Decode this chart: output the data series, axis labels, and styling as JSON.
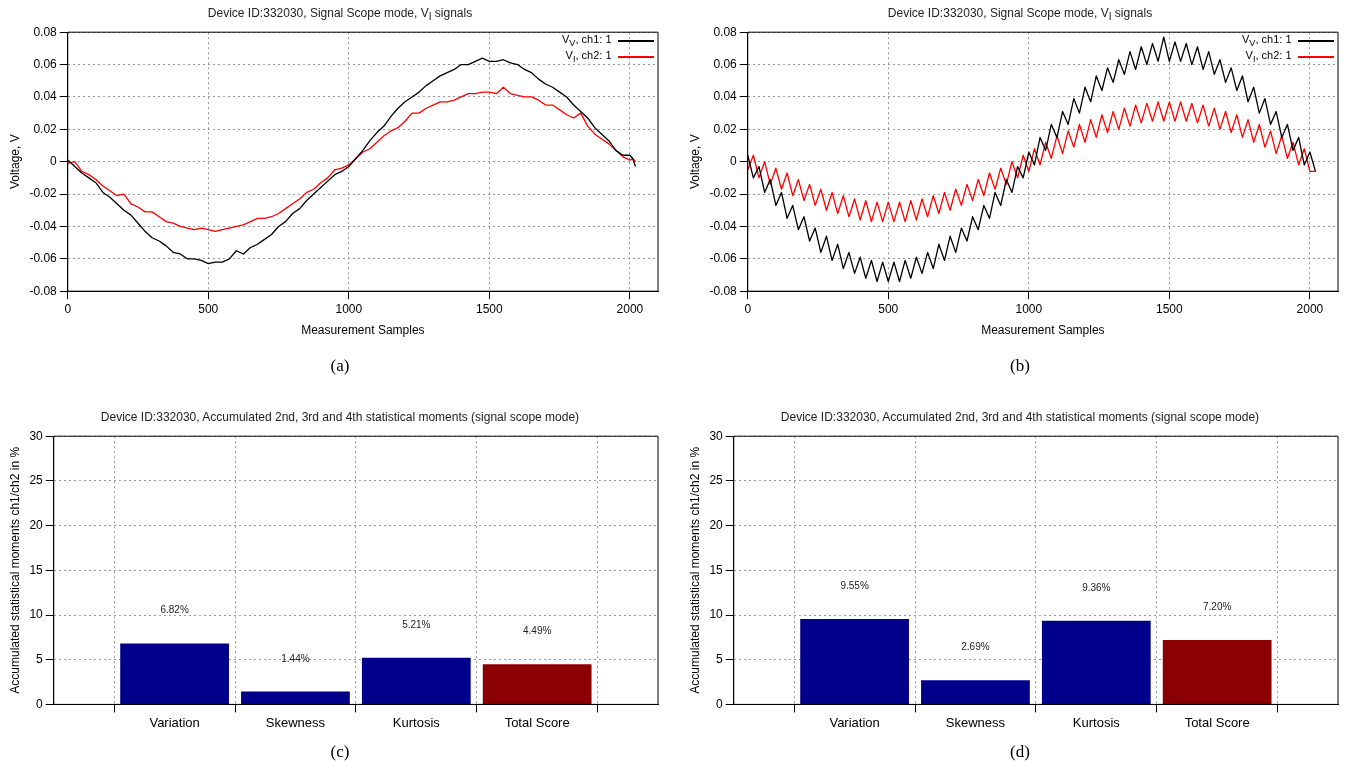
{
  "chart_data": [
    {
      "type": "line",
      "title": "Device ID:332030, Signal Scope mode, V$_{I}$ signals",
      "xlabel": "Measurement Samples",
      "ylabel": "Voltage, V",
      "annotations": [
        "(a)"
      ],
      "x": [
        0,
        25,
        50,
        75,
        100,
        125,
        150,
        175,
        200,
        225,
        250,
        275,
        300,
        325,
        350,
        375,
        400,
        425,
        450,
        475,
        500,
        525,
        550,
        575,
        600,
        625,
        650,
        675,
        700,
        725,
        750,
        775,
        800,
        825,
        850,
        875,
        900,
        925,
        950,
        975,
        1000,
        1025,
        1050,
        1075,
        1100,
        1125,
        1150,
        1175,
        1200,
        1225,
        1250,
        1275,
        1300,
        1325,
        1350,
        1375,
        1400,
        1425,
        1450,
        1475,
        1500,
        1525,
        1550,
        1575,
        1600,
        1625,
        1650,
        1675,
        1700,
        1725,
        1750,
        1775,
        1800,
        1825,
        1850,
        1875,
        1900,
        1925,
        1950,
        1975,
        2000,
        2010,
        2020
      ],
      "series": [
        {
          "name": "V$_{V}$, ch1: 1",
          "color": "#000000",
          "values": [
            0.001,
            -0.003,
            -0.007,
            -0.01,
            -0.013,
            -0.019,
            -0.022,
            -0.026,
            -0.03,
            -0.033,
            -0.038,
            -0.043,
            -0.047,
            -0.049,
            -0.052,
            -0.056,
            -0.057,
            -0.06,
            -0.06,
            -0.061,
            -0.063,
            -0.062,
            -0.062,
            -0.06,
            -0.055,
            -0.057,
            -0.053,
            -0.051,
            -0.048,
            -0.045,
            -0.04,
            -0.037,
            -0.032,
            -0.029,
            -0.024,
            -0.02,
            -0.016,
            -0.012,
            -0.008,
            -0.006,
            -0.003,
            0.002,
            0.007,
            0.013,
            0.018,
            0.022,
            0.028,
            0.033,
            0.037,
            0.04,
            0.043,
            0.047,
            0.05,
            0.053,
            0.055,
            0.057,
            0.06,
            0.06,
            0.062,
            0.064,
            0.062,
            0.062,
            0.063,
            0.061,
            0.06,
            0.057,
            0.055,
            0.051,
            0.048,
            0.046,
            0.043,
            0.04,
            0.035,
            0.031,
            0.027,
            0.021,
            0.017,
            0.013,
            0.007,
            0.004,
            0.004,
            0.002,
            -0.003
          ]
        },
        {
          "name": "V$_{I}$, ch2: 1",
          "color": "#ff0000",
          "values": [
            -0.001,
            0.0,
            -0.006,
            -0.008,
            -0.011,
            -0.015,
            -0.018,
            -0.021,
            -0.02,
            -0.026,
            -0.028,
            -0.031,
            -0.031,
            -0.034,
            -0.037,
            -0.038,
            -0.04,
            -0.041,
            -0.042,
            -0.041,
            -0.042,
            -0.043,
            -0.042,
            -0.041,
            -0.04,
            -0.039,
            -0.037,
            -0.035,
            -0.035,
            -0.034,
            -0.032,
            -0.029,
            -0.026,
            -0.023,
            -0.019,
            -0.017,
            -0.013,
            -0.01,
            -0.005,
            -0.004,
            -0.002,
            0.002,
            0.006,
            0.008,
            0.012,
            0.016,
            0.019,
            0.021,
            0.025,
            0.03,
            0.03,
            0.033,
            0.035,
            0.037,
            0.037,
            0.038,
            0.04,
            0.042,
            0.042,
            0.043,
            0.043,
            0.042,
            0.046,
            0.042,
            0.041,
            0.04,
            0.04,
            0.038,
            0.035,
            0.035,
            0.032,
            0.029,
            0.027,
            0.03,
            0.022,
            0.017,
            0.014,
            0.011,
            0.007,
            0.003,
            0.001,
            0.002,
            0.0
          ]
        }
      ],
      "xlim": [
        0,
        2100
      ],
      "xticks": [
        0,
        500,
        1000,
        1500,
        2000
      ],
      "ylim": [
        -0.08,
        0.08
      ],
      "yticks": [
        -0.08,
        -0.06,
        -0.04,
        -0.02,
        0,
        0.02,
        0.04,
        0.06,
        0.08
      ],
      "grid": true,
      "legend": "top right",
      "marker": "none"
    },
    {
      "type": "line",
      "title": "Device ID:332030, Signal Scope mode, V$_{I}$ signals",
      "xlabel": "Measurement Samples",
      "ylabel": "Voltage, V",
      "annotations": [
        "(b)"
      ],
      "x": [
        0,
        20,
        40,
        60,
        80,
        100,
        120,
        140,
        160,
        180,
        200,
        220,
        240,
        260,
        280,
        300,
        320,
        340,
        360,
        380,
        400,
        420,
        440,
        460,
        480,
        500,
        520,
        540,
        560,
        580,
        600,
        620,
        640,
        660,
        680,
        700,
        720,
        740,
        760,
        780,
        800,
        820,
        840,
        860,
        880,
        900,
        920,
        940,
        960,
        980,
        1000,
        1020,
        1040,
        1060,
        1080,
        1100,
        1120,
        1140,
        1160,
        1180,
        1200,
        1220,
        1240,
        1260,
        1280,
        1300,
        1320,
        1340,
        1360,
        1380,
        1400,
        1420,
        1440,
        1460,
        1480,
        1500,
        1520,
        1540,
        1560,
        1580,
        1600,
        1620,
        1640,
        1660,
        1680,
        1700,
        1720,
        1740,
        1760,
        1780,
        1800,
        1820,
        1840,
        1860,
        1880,
        1900,
        1920,
        1940,
        1960,
        1980,
        2000,
        2020
      ],
      "series": [
        {
          "name": "V$_{V}$, ch1: 1",
          "color": "#000000",
          "values": [
            0.004,
            -0.01,
            -0.003,
            -0.019,
            -0.011,
            -0.027,
            -0.019,
            -0.035,
            -0.027,
            -0.042,
            -0.034,
            -0.049,
            -0.041,
            -0.056,
            -0.046,
            -0.061,
            -0.051,
            -0.066,
            -0.056,
            -0.069,
            -0.059,
            -0.072,
            -0.061,
            -0.074,
            -0.062,
            -0.074,
            -0.062,
            -0.074,
            -0.061,
            -0.072,
            -0.059,
            -0.069,
            -0.056,
            -0.066,
            -0.051,
            -0.061,
            -0.046,
            -0.056,
            -0.041,
            -0.049,
            -0.034,
            -0.042,
            -0.027,
            -0.035,
            -0.019,
            -0.027,
            -0.011,
            -0.019,
            -0.003,
            -0.01,
            0.006,
            -0.002,
            0.015,
            0.007,
            0.023,
            0.015,
            0.031,
            0.023,
            0.039,
            0.03,
            0.046,
            0.037,
            0.053,
            0.044,
            0.058,
            0.049,
            0.063,
            0.054,
            0.068,
            0.057,
            0.071,
            0.06,
            0.073,
            0.062,
            0.077,
            0.062,
            0.074,
            0.062,
            0.073,
            0.06,
            0.071,
            0.057,
            0.068,
            0.054,
            0.063,
            0.049,
            0.058,
            0.044,
            0.053,
            0.037,
            0.046,
            0.03,
            0.039,
            0.023,
            0.031,
            0.015,
            0.023,
            0.007,
            0.015,
            -0.002,
            0.006,
            -0.006
          ]
        },
        {
          "name": "V$_{I}$, ch2: 1",
          "color": "#ff0000",
          "values": [
            -0.005,
            0.004,
            -0.01,
            0.0,
            -0.014,
            -0.004,
            -0.017,
            -0.007,
            -0.021,
            -0.011,
            -0.024,
            -0.014,
            -0.027,
            -0.017,
            -0.03,
            -0.019,
            -0.032,
            -0.021,
            -0.034,
            -0.023,
            -0.036,
            -0.024,
            -0.037,
            -0.025,
            -0.037,
            -0.025,
            -0.037,
            -0.025,
            -0.037,
            -0.024,
            -0.036,
            -0.023,
            -0.034,
            -0.021,
            -0.032,
            -0.019,
            -0.03,
            -0.017,
            -0.027,
            -0.014,
            -0.024,
            -0.011,
            -0.021,
            -0.007,
            -0.017,
            -0.004,
            -0.014,
            0.0,
            -0.01,
            0.004,
            -0.006,
            0.008,
            -0.002,
            0.012,
            0.002,
            0.016,
            0.005,
            0.019,
            0.009,
            0.023,
            0.012,
            0.026,
            0.015,
            0.029,
            0.018,
            0.031,
            0.02,
            0.033,
            0.022,
            0.035,
            0.024,
            0.036,
            0.025,
            0.037,
            0.025,
            0.037,
            0.025,
            0.037,
            0.025,
            0.036,
            0.024,
            0.035,
            0.022,
            0.033,
            0.02,
            0.031,
            0.018,
            0.029,
            0.015,
            0.026,
            0.012,
            0.023,
            0.009,
            0.019,
            0.005,
            0.016,
            0.002,
            0.012,
            -0.002,
            0.008,
            -0.006,
            -0.006
          ]
        }
      ],
      "xlim": [
        0,
        2100
      ],
      "xticks": [
        0,
        500,
        1000,
        1500,
        2000
      ],
      "ylim": [
        -0.08,
        0.08
      ],
      "yticks": [
        -0.08,
        -0.06,
        -0.04,
        -0.02,
        0,
        0.02,
        0.04,
        0.06,
        0.08
      ],
      "grid": true,
      "legend": "top right",
      "marker": "none"
    },
    {
      "type": "bar",
      "title": "Device ID:332030, Accumulated 2nd, 3rd and 4th statistical moments (signal scope mode)",
      "ylabel": "Accumulated statistical moments ch1/ch2 in %",
      "annotations": [
        "(c)"
      ],
      "categories": [
        "Variation",
        "Skewness",
        "Kurtosis",
        "Total Score"
      ],
      "values": [
        6.82,
        1.44,
        5.21,
        4.49
      ],
      "value_labels": [
        "6.82%",
        "1.44%",
        "5.21%",
        "4.49%"
      ],
      "colors": [
        "#00008b",
        "#00008b",
        "#00008b",
        "#8b0000"
      ],
      "ylim": [
        0,
        30
      ],
      "yticks": [
        0,
        5,
        10,
        15,
        20,
        25,
        30
      ],
      "grid": true
    },
    {
      "type": "bar",
      "title": "Device ID:332030, Accumulated 2nd, 3rd and 4th statistical moments (signal scope mode)",
      "ylabel": "Accumulated statistical moments ch1/ch2 in %",
      "annotations": [
        "(d)"
      ],
      "categories": [
        "Variation",
        "Skewness",
        "Kurtosis",
        "Total Score"
      ],
      "values": [
        9.55,
        2.69,
        9.36,
        7.2
      ],
      "value_labels": [
        "9.55%",
        "2.69%",
        "9.36%",
        "7.20%"
      ],
      "colors": [
        "#00008b",
        "#00008b",
        "#00008b",
        "#8b0000"
      ],
      "ylim": [
        0,
        30
      ],
      "yticks": [
        0,
        5,
        10,
        15,
        20,
        25,
        30
      ],
      "grid": true
    }
  ]
}
